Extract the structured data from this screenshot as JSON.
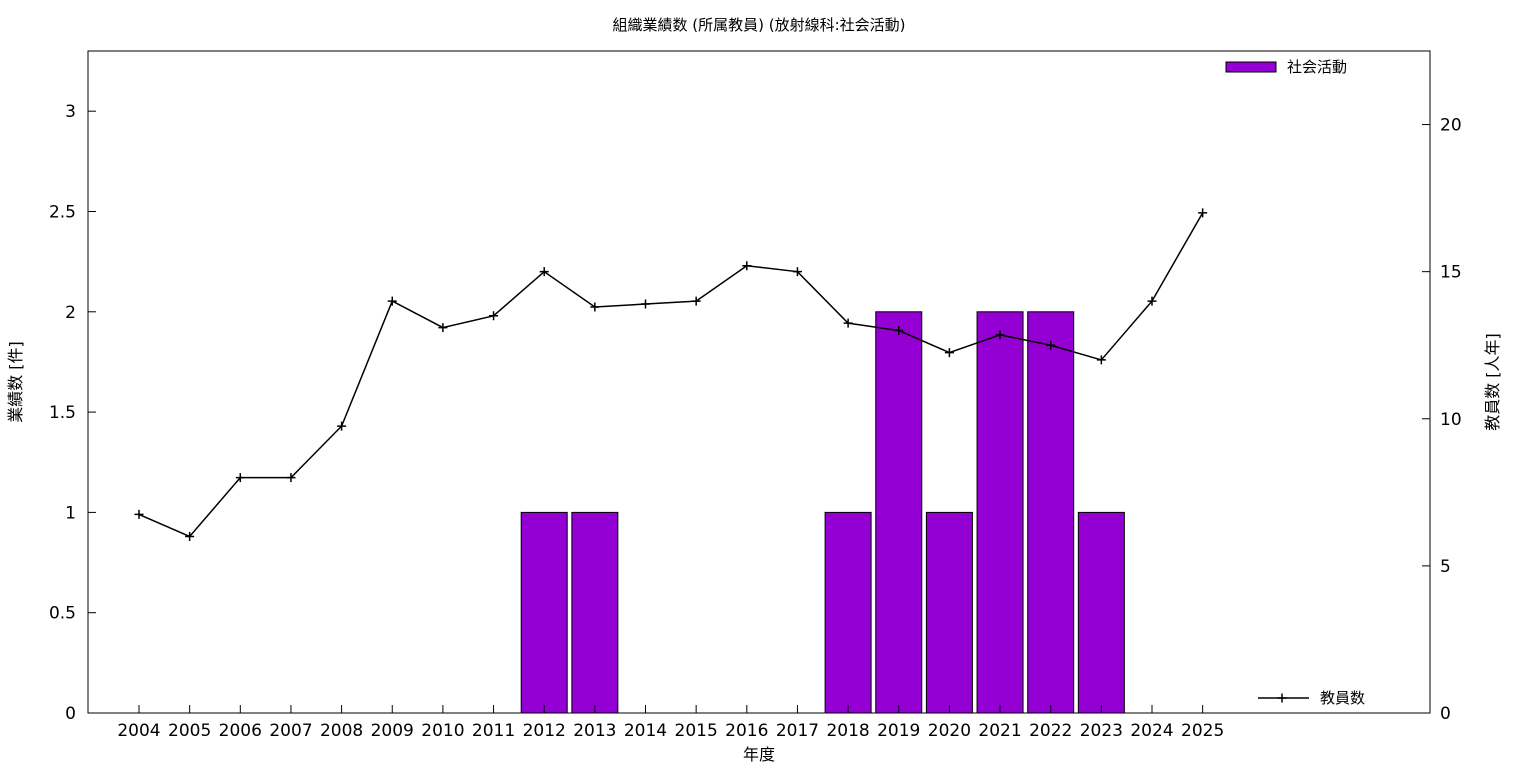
{
  "chart_data": {
    "type": "bar",
    "title": "組織業績数 (所属教員) (放射線科:社会活動)",
    "xlabel": "年度",
    "ylabel": "業績数 [件]",
    "y2label": "教員数 [人年]",
    "categories": [
      "2004",
      "2005",
      "2006",
      "2007",
      "2008",
      "2009",
      "2010",
      "2011",
      "2012",
      "2013",
      "2014",
      "2015",
      "2016",
      "2017",
      "2018",
      "2019",
      "2020",
      "2021",
      "2022",
      "2023",
      "2024",
      "2025"
    ],
    "ylim": [
      0,
      3.3
    ],
    "y2lim": [
      0,
      22.5
    ],
    "yticks": [
      "0",
      "0.5",
      "1",
      "1.5",
      "2",
      "2.5",
      "3"
    ],
    "y2ticks": [
      "0",
      "5",
      "10",
      "15",
      "20"
    ],
    "grid": false,
    "series": [
      {
        "name": "社会活動",
        "type": "bar",
        "axis": "left",
        "color": "#9400d3",
        "values": [
          0,
          0,
          0,
          0,
          0,
          0,
          0,
          0,
          1,
          1,
          0,
          0,
          0,
          0,
          1,
          2,
          1,
          2,
          2,
          1,
          0,
          0
        ]
      },
      {
        "name": "教員数",
        "type": "line",
        "axis": "right",
        "color": "#000000",
        "marker": "plus",
        "values": [
          6.75,
          6.0,
          8.0,
          8.0,
          9.75,
          14.0,
          13.1,
          13.5,
          15.0,
          13.8,
          13.9,
          14.0,
          15.2,
          15.0,
          13.25,
          13.0,
          12.25,
          12.85,
          12.5,
          12.0,
          14.0,
          17.0
        ]
      }
    ],
    "legend": [
      {
        "label": "社会活動",
        "placement": "top-right"
      },
      {
        "label": "教員数",
        "placement": "bottom-right"
      }
    ]
  }
}
